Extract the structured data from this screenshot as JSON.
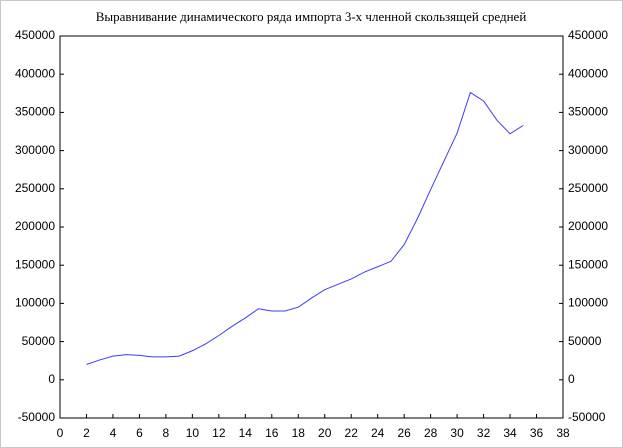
{
  "chart_data": {
    "type": "line",
    "title": "Выравнивание динамического ряда импорта 3-х членной скользящей средней",
    "x": [
      2,
      3,
      4,
      5,
      6,
      7,
      8,
      9,
      10,
      11,
      12,
      13,
      14,
      15,
      16,
      17,
      18,
      19,
      20,
      21,
      22,
      23,
      24,
      25,
      26,
      27,
      28,
      29,
      30,
      31,
      32,
      33,
      34,
      35
    ],
    "series": [
      {
        "color": "#3c3cff",
        "values": [
          20000,
          26000,
          31000,
          33000,
          32000,
          30000,
          30000,
          31000,
          38000,
          47000,
          58000,
          70000,
          81000,
          93000,
          90000,
          90000,
          95000,
          107000,
          118000,
          125000,
          132000,
          141000,
          148000,
          155000,
          177000,
          211000,
          249000,
          286000,
          323000,
          376000,
          365000,
          340000,
          322000,
          333000
        ]
      }
    ],
    "xlim": [
      0,
      38
    ],
    "xticks": [
      0,
      2,
      4,
      6,
      8,
      10,
      12,
      14,
      16,
      18,
      20,
      22,
      24,
      26,
      28,
      30,
      32,
      34,
      36,
      38
    ],
    "ylim": [
      -50000,
      450000
    ],
    "yticks": [
      -50000,
      0,
      50000,
      100000,
      150000,
      200000,
      250000,
      300000,
      350000,
      400000,
      450000
    ],
    "y2lim": [
      -50000,
      450000
    ],
    "y2ticks": [
      -50000,
      0,
      50000,
      100000,
      150000,
      200000,
      250000,
      300000,
      350000,
      400000,
      450000
    ]
  }
}
